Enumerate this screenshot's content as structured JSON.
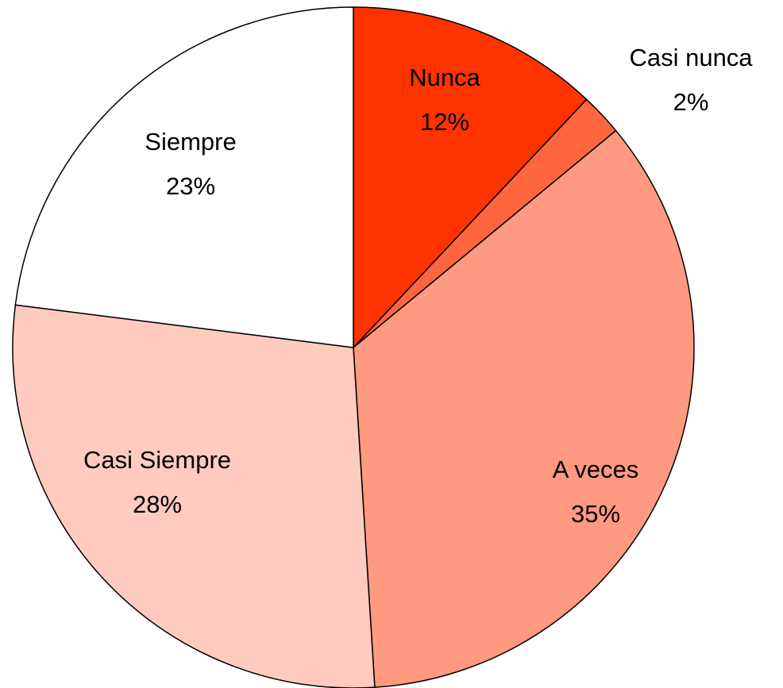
{
  "chart_data": {
    "type": "pie",
    "categories": [
      "Nunca",
      "Casi nunca",
      "A veces",
      "Casi Siempre",
      "Siempre"
    ],
    "values": [
      12,
      2,
      35,
      28,
      23
    ],
    "value_labels": [
      "12%",
      "2%",
      "35%",
      "28%",
      "23%"
    ],
    "colors": [
      "#ff3300",
      "#ff6640",
      "#ff9980",
      "#ffcbbf",
      "#ffffff"
    ]
  }
}
